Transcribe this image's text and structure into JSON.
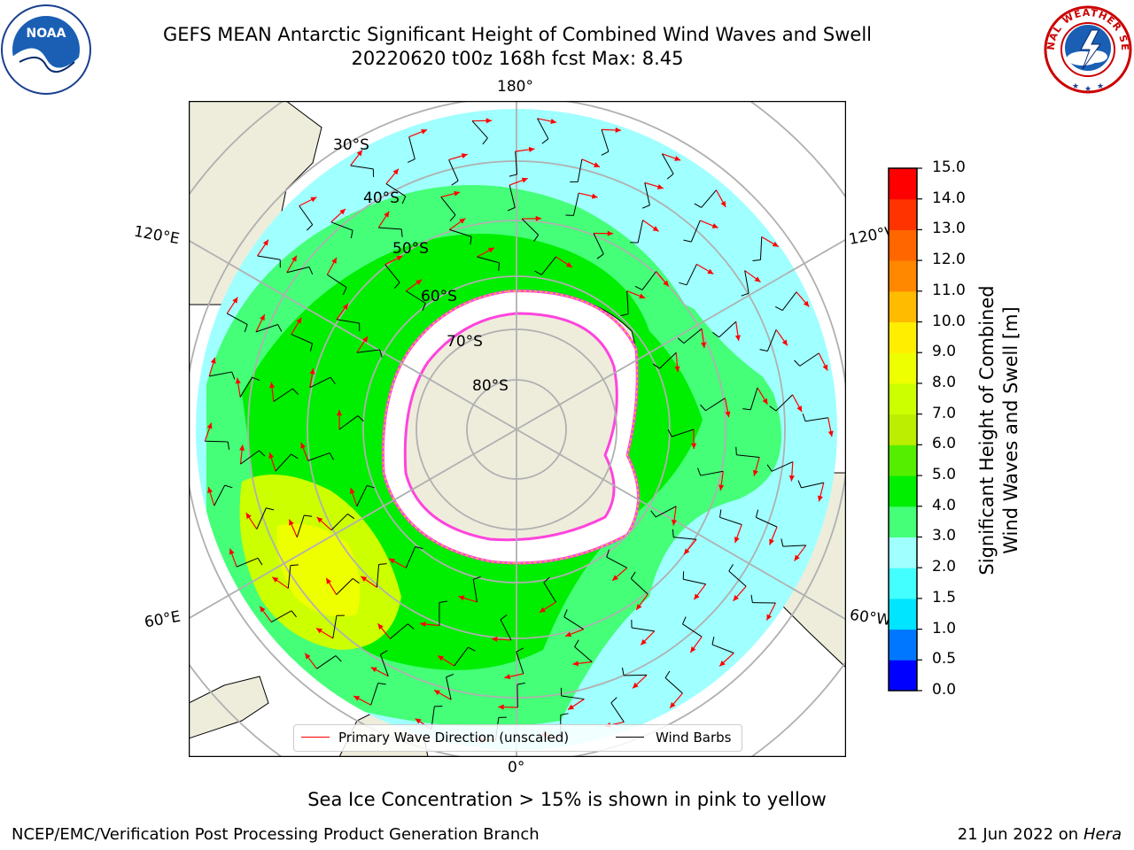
{
  "header": {
    "title_line1": "GEFS MEAN Antarctic Significant Height of Combined Wind Waves and Swell",
    "title_line2": "20220620 t00z 168h fcst   Max: 8.45"
  },
  "map": {
    "projection": "south-polar-stereographic",
    "longitude_labels": {
      "top": "180°",
      "upper_left": "120°E",
      "upper_right": "120°W",
      "lower_left": "60°E",
      "lower_right": "60°W",
      "bottom": "0°"
    },
    "latitude_labels": [
      "30°S",
      "40°S",
      "50°S",
      "60°S",
      "70°S",
      "80°S"
    ],
    "colors": {
      "land": "#eeeddc",
      "coast": "#000000",
      "grid": "#b0b0b0",
      "ice_edge_pink": "#ff44dd",
      "ice_edge_yellow": "#ffbb33",
      "wave_arrow": "#ff0000",
      "wind_barb": "#000000"
    }
  },
  "legend": {
    "wave_direction_label": "Primary Wave Direction (unscaled)",
    "wind_barbs_label": "Wind Barbs"
  },
  "colorbar": {
    "label_line1": "Significant Height of Combined",
    "label_line2": "Wind Waves and Swell [m]",
    "ticks": [
      "0.0",
      "0.5",
      "1.0",
      "1.5",
      "2.0",
      "3.0",
      "4.0",
      "5.0",
      "6.0",
      "7.0",
      "8.0",
      "9.0",
      "10.0",
      "11.0",
      "12.0",
      "13.0",
      "14.0",
      "15.0"
    ],
    "colors": [
      "#0000ff",
      "#0077ff",
      "#00e5ff",
      "#44ffff",
      "#a0ffff",
      "#44ff77",
      "#00ee00",
      "#55ee00",
      "#bbee00",
      "#ccff00",
      "#eeff00",
      "#ffee00",
      "#ffbb00",
      "#ff8800",
      "#ff6600",
      "#ff3300",
      "#ff0000"
    ]
  },
  "subtitle": "Sea Ice Concentration > 15% is shown in pink to yellow",
  "footer": {
    "left": "NCEP/EMC/Verification Post Processing Product Generation Branch",
    "right_prefix": "21 Jun 2022 on",
    "right_host": "Hera"
  },
  "logos": {
    "noaa_text": "NOAA",
    "nws_text": "NATIONAL WEATHER SERVICE"
  }
}
